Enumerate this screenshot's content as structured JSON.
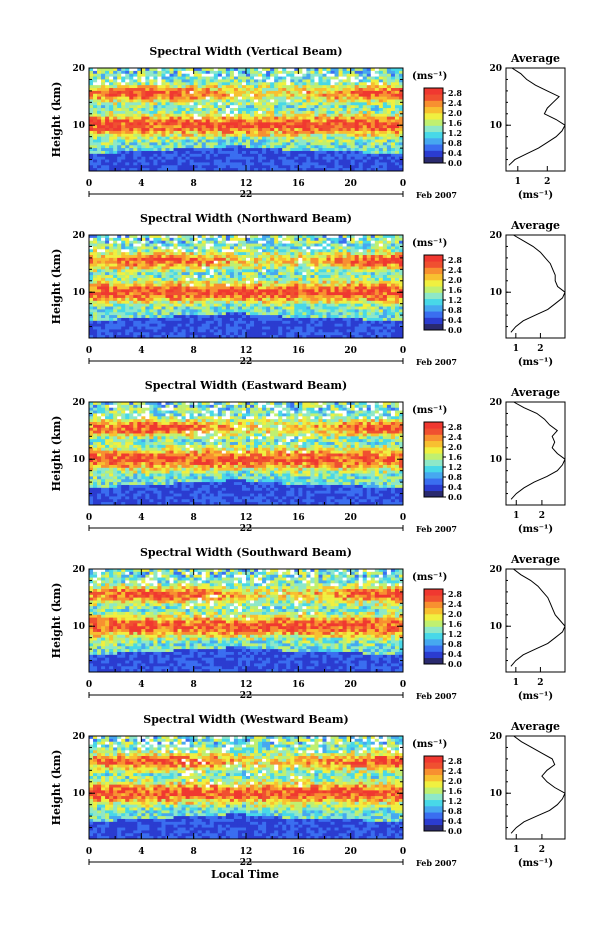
{
  "figure": {
    "xlabel": "Local Time",
    "date_label": "Feb 2007",
    "day_label": "22",
    "ylabel": "Height (km)",
    "colorbar_unit": "(ms⁻¹)",
    "average_title": "Average",
    "average_xlabel": "(ms⁻¹)",
    "colors": {
      "scale": [
        "#2a2a6e",
        "#2b3cd0",
        "#3a6ef0",
        "#46a8f0",
        "#48d8e8",
        "#8ee8c8",
        "#c0f070",
        "#f0f040",
        "#f8c030",
        "#f89030",
        "#f05030",
        "#f03830"
      ]
    }
  },
  "chart_data": [
    {
      "type": "heatmap",
      "title": "Spectral Width (Vertical Beam)",
      "x_ticks": [
        "0",
        "4",
        "8",
        "12",
        "16",
        "20",
        "0"
      ],
      "y_ticks": [
        "10",
        "20"
      ],
      "xlim": [
        0,
        24
      ],
      "ylim": [
        2,
        20
      ],
      "colorbar_ticks": [
        "0.0",
        "0.4",
        "0.8",
        "1.2",
        "1.6",
        "2.0",
        "2.4",
        "2.8"
      ],
      "colorbar_range": [
        0,
        3.0
      ],
      "profile": {
        "title": "Average",
        "x_ticks": [
          "1",
          "2"
        ],
        "xlim": [
          0.6,
          2.6
        ],
        "heights": [
          3,
          4,
          5,
          6,
          7,
          8,
          9,
          10,
          11,
          12,
          13,
          14,
          15,
          16,
          17,
          18,
          19,
          20
        ],
        "values": [
          0.7,
          0.9,
          1.3,
          1.7,
          2.0,
          2.3,
          2.5,
          2.6,
          2.3,
          1.9,
          2.0,
          2.2,
          2.4,
          2.0,
          1.6,
          1.3,
          1.1,
          0.8
        ]
      }
    },
    {
      "type": "heatmap",
      "title": "Spectral Width (Northward Beam)",
      "x_ticks": [
        "0",
        "4",
        "8",
        "12",
        "16",
        "20",
        "0"
      ],
      "y_ticks": [
        "10",
        "20"
      ],
      "xlim": [
        0,
        24
      ],
      "ylim": [
        2,
        20
      ],
      "colorbar_ticks": [
        "0.0",
        "0.4",
        "0.8",
        "1.2",
        "1.6",
        "2.0",
        "2.4",
        "2.8"
      ],
      "colorbar_range": [
        0,
        3.0
      ],
      "profile": {
        "title": "Average",
        "x_ticks": [
          "1",
          "2"
        ],
        "xlim": [
          0.6,
          3.0
        ],
        "heights": [
          3,
          4,
          5,
          6,
          7,
          8,
          9,
          10,
          11,
          12,
          13,
          14,
          15,
          16,
          17,
          18,
          19,
          20
        ],
        "values": [
          0.8,
          1.0,
          1.3,
          1.8,
          2.3,
          2.6,
          2.9,
          3.0,
          2.7,
          2.6,
          2.6,
          2.5,
          2.4,
          2.2,
          2.0,
          1.7,
          1.3,
          0.9
        ]
      }
    },
    {
      "type": "heatmap",
      "title": "Spectral Width (Eastward Beam)",
      "x_ticks": [
        "0",
        "4",
        "8",
        "12",
        "16",
        "20",
        "0"
      ],
      "y_ticks": [
        "10",
        "20"
      ],
      "xlim": [
        0,
        24
      ],
      "ylim": [
        2,
        20
      ],
      "colorbar_ticks": [
        "0.0",
        "0.4",
        "0.8",
        "1.2",
        "1.6",
        "2.0",
        "2.4",
        "2.8"
      ],
      "colorbar_range": [
        0,
        3.0
      ],
      "profile": {
        "title": "Average",
        "x_ticks": [
          "1",
          "2"
        ],
        "xlim": [
          0.6,
          2.9
        ],
        "heights": [
          3,
          4,
          5,
          6,
          7,
          8,
          9,
          10,
          11,
          12,
          13,
          14,
          15,
          16,
          17,
          18,
          19,
          20
        ],
        "values": [
          0.8,
          1.0,
          1.3,
          1.7,
          2.2,
          2.6,
          2.8,
          2.9,
          2.6,
          2.4,
          2.5,
          2.4,
          2.6,
          2.3,
          2.1,
          1.8,
          1.3,
          0.9
        ]
      }
    },
    {
      "type": "heatmap",
      "title": "Spectral Width (Southward Beam)",
      "x_ticks": [
        "0",
        "4",
        "8",
        "12",
        "16",
        "20",
        "0"
      ],
      "y_ticks": [
        "10",
        "20"
      ],
      "xlim": [
        0,
        24
      ],
      "ylim": [
        2,
        20
      ],
      "colorbar_ticks": [
        "0.0",
        "0.4",
        "0.8",
        "1.2",
        "1.6",
        "2.0",
        "2.4",
        "2.8"
      ],
      "colorbar_range": [
        0,
        3.0
      ],
      "profile": {
        "title": "Average",
        "x_ticks": [
          "1",
          "2"
        ],
        "xlim": [
          0.6,
          3.0
        ],
        "heights": [
          3,
          4,
          5,
          6,
          7,
          8,
          9,
          10,
          11,
          12,
          13,
          14,
          15,
          16,
          17,
          18,
          19,
          20
        ],
        "values": [
          0.8,
          1.0,
          1.3,
          1.8,
          2.3,
          2.6,
          2.9,
          3.0,
          2.8,
          2.6,
          2.5,
          2.4,
          2.3,
          2.1,
          1.9,
          1.6,
          1.2,
          0.9
        ]
      }
    },
    {
      "type": "heatmap",
      "title": "Spectral Width (Westward Beam)",
      "x_ticks": [
        "0",
        "4",
        "8",
        "12",
        "16",
        "20",
        "0"
      ],
      "y_ticks": [
        "10",
        "20"
      ],
      "xlim": [
        0,
        24
      ],
      "ylim": [
        2,
        20
      ],
      "colorbar_ticks": [
        "0.0",
        "0.4",
        "0.8",
        "1.2",
        "1.6",
        "2.0",
        "2.4",
        "2.8"
      ],
      "colorbar_range": [
        0,
        3.0
      ],
      "profile": {
        "title": "Average",
        "x_ticks": [
          "1",
          "2"
        ],
        "xlim": [
          0.6,
          2.9
        ],
        "heights": [
          3,
          4,
          5,
          6,
          7,
          8,
          9,
          10,
          11,
          12,
          13,
          14,
          15,
          16,
          17,
          18,
          19,
          20
        ],
        "values": [
          0.8,
          1.0,
          1.3,
          1.8,
          2.3,
          2.6,
          2.8,
          2.9,
          2.5,
          2.2,
          2.0,
          2.2,
          2.5,
          2.4,
          2.0,
          1.6,
          1.2,
          0.9
        ]
      }
    }
  ]
}
